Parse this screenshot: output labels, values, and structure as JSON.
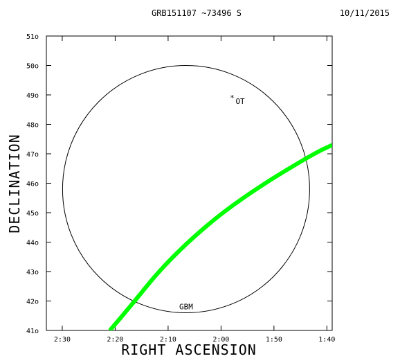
{
  "header": {
    "title": "GRB151107 ~73496 S",
    "date": "10/11/2015"
  },
  "chart_data": {
    "type": "line",
    "xlabel": "RIGHT ASCENSION",
    "ylabel": "DECLINATION",
    "x_unit": "minutes of right ascension (h:mm)",
    "xlim": [
      153.0,
      99.0
    ],
    "ylim": [
      41,
      51
    ],
    "x_ticks": [
      {
        "value": 150,
        "label": "2:30"
      },
      {
        "value": 140,
        "label": "2:20"
      },
      {
        "value": 130,
        "label": "2:10"
      },
      {
        "value": 120,
        "label": "2:00"
      },
      {
        "value": 110,
        "label": "1:50"
      },
      {
        "value": 100,
        "label": "1:40"
      }
    ],
    "y_ticks": [
      {
        "value": 51,
        "label": "51o"
      },
      {
        "value": 50,
        "label": "50o"
      },
      {
        "value": 49,
        "label": "49o"
      },
      {
        "value": 48,
        "label": "48o"
      },
      {
        "value": 47,
        "label": "47o"
      },
      {
        "value": 46,
        "label": "46o"
      },
      {
        "value": 45,
        "label": "45o"
      },
      {
        "value": 44,
        "label": "44o"
      },
      {
        "value": 43,
        "label": "43o"
      },
      {
        "value": 42,
        "label": "42o"
      },
      {
        "value": 41,
        "label": "41o"
      }
    ],
    "grid": false,
    "circle": {
      "label": "GBM",
      "center_ra": 126.6,
      "center_dec": 45.8,
      "radius_deg": 4.2,
      "color": "#000000"
    },
    "band": {
      "color": "#00ff00",
      "points": [
        {
          "ra": 141.0,
          "dec": 41.0
        },
        {
          "ra": 136.3,
          "dec": 42.0
        },
        {
          "ra": 131.8,
          "dec": 43.0
        },
        {
          "ra": 126.3,
          "dec": 44.0
        },
        {
          "ra": 119.8,
          "dec": 45.0
        },
        {
          "ra": 111.8,
          "dec": 46.0
        },
        {
          "ra": 102.5,
          "dec": 47.0
        },
        {
          "ra": 99.0,
          "dec": 47.3
        }
      ]
    },
    "marker": {
      "label": "OT",
      "symbol": "*",
      "ra": 117.9,
      "dec": 48.95
    }
  }
}
